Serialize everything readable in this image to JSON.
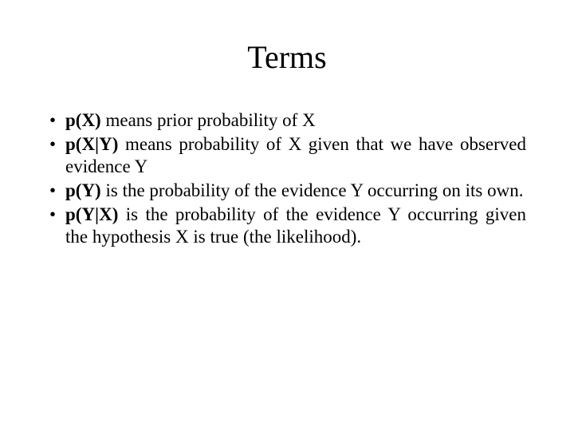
{
  "slide": {
    "title": "Terms",
    "title_fontsize": 40,
    "body_fontsize": 23,
    "font_family": "Times New Roman",
    "background_color": "#ffffff",
    "text_color": "#000000",
    "bullets": [
      {
        "term": "p(X)",
        "rest": " means prior probability of X"
      },
      {
        "term": "p(X|Y)",
        "rest": " means probability of X given that we have observed evidence Y"
      },
      {
        "term": "p(Y)",
        "rest": " is the probability of the evidence Y occurring on its own."
      },
      {
        "term": "p(Y|X)",
        "rest": " is the probability of the evidence Y occurring given the hypothesis X is true (the likelihood)."
      }
    ]
  }
}
